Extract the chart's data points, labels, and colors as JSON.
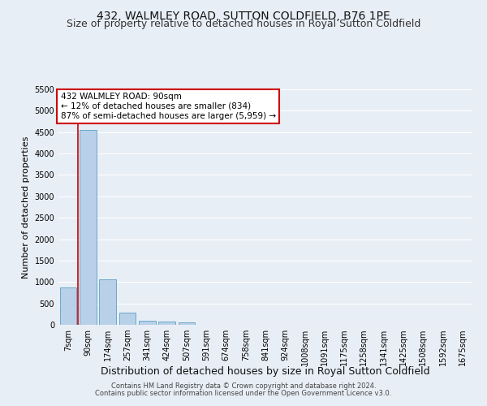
{
  "title": "432, WALMLEY ROAD, SUTTON COLDFIELD, B76 1PE",
  "subtitle": "Size of property relative to detached houses in Royal Sutton Coldfield",
  "xlabel": "Distribution of detached houses by size in Royal Sutton Coldfield",
  "ylabel": "Number of detached properties",
  "footnote1": "Contains HM Land Registry data © Crown copyright and database right 2024.",
  "footnote2": "Contains public sector information licensed under the Open Government Licence v3.0.",
  "annotation_title": "432 WALMLEY ROAD: 90sqm",
  "annotation_line2": "← 12% of detached houses are smaller (834)",
  "annotation_line3": "87% of semi-detached houses are larger (5,959) →",
  "bar_categories": [
    "7sqm",
    "90sqm",
    "174sqm",
    "257sqm",
    "341sqm",
    "424sqm",
    "507sqm",
    "591sqm",
    "674sqm",
    "758sqm",
    "841sqm",
    "924sqm",
    "1008sqm",
    "1091sqm",
    "1175sqm",
    "1258sqm",
    "1341sqm",
    "1425sqm",
    "1508sqm",
    "1592sqm",
    "1675sqm"
  ],
  "bar_values": [
    870,
    4560,
    1060,
    280,
    90,
    75,
    55,
    0,
    0,
    0,
    0,
    0,
    0,
    0,
    0,
    0,
    0,
    0,
    0,
    0,
    0
  ],
  "bar_color": "#b8d0e8",
  "bar_edge_color": "#5a9fc5",
  "vline_color": "#cc0000",
  "annotation_box_color": "#ffffff",
  "annotation_box_edge": "#cc0000",
  "ylim": [
    0,
    5500
  ],
  "yticks": [
    0,
    500,
    1000,
    1500,
    2000,
    2500,
    3000,
    3500,
    4000,
    4500,
    5000,
    5500
  ],
  "bg_color": "#e8eef5",
  "plot_bg_color": "#e8eef5",
  "grid_color": "#ffffff",
  "title_fontsize": 10,
  "subtitle_fontsize": 9,
  "ylabel_fontsize": 8,
  "xlabel_fontsize": 9,
  "footnote_fontsize": 6,
  "tick_fontsize": 7,
  "annotation_fontsize": 7.5
}
